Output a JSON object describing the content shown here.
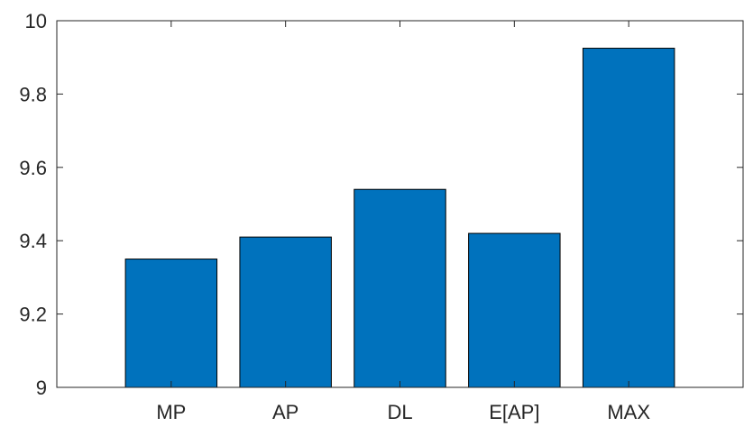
{
  "chart_data": {
    "type": "bar",
    "title": "",
    "xlabel": "",
    "ylabel": "",
    "categories": [
      "MP",
      "AP",
      "DL",
      "E[AP]",
      "MAX"
    ],
    "values": [
      9.35,
      9.41,
      9.54,
      9.42,
      9.925
    ],
    "ylim": [
      9,
      10
    ],
    "yticks": [
      9,
      9.2,
      9.4,
      9.6,
      9.8,
      10
    ],
    "ytick_labels": [
      "9",
      "9.2",
      "9.4",
      "9.6",
      "9.8",
      "10"
    ],
    "bar_color": "#0072BD",
    "grid": false,
    "legend": "none"
  }
}
